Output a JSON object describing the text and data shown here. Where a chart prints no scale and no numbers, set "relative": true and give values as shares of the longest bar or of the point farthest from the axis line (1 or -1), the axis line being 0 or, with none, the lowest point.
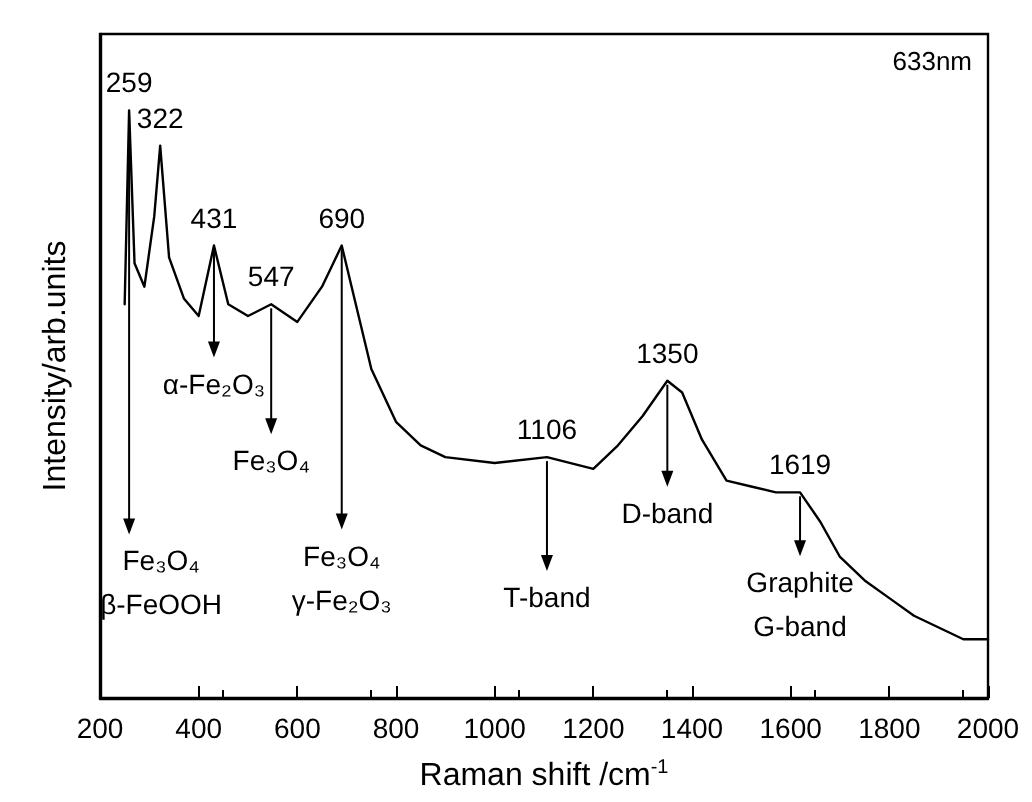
{
  "chart_data": {
    "type": "line",
    "relative": true,
    "xlabel": "Raman shift /cm$^{-1}$",
    "ylabel": "Intensity/arb.units",
    "x": [
      250,
      259,
      270,
      290,
      310,
      322,
      340,
      370,
      400,
      431,
      460,
      500,
      547,
      600,
      650,
      690,
      710,
      750,
      800,
      850,
      900,
      1000,
      1106,
      1200,
      1250,
      1300,
      1350,
      1380,
      1420,
      1470,
      1520,
      1570,
      1619,
      1660,
      1700,
      1750,
      1800,
      1850,
      1900,
      1950,
      2000
    ],
    "series": [
      {
        "color": "#000000",
        "values": [
          0.67,
          1.0,
          0.74,
          0.7,
          0.82,
          0.94,
          0.75,
          0.68,
          0.65,
          0.77,
          0.67,
          0.65,
          0.67,
          0.64,
          0.7,
          0.77,
          0.7,
          0.56,
          0.47,
          0.43,
          0.41,
          0.4,
          0.41,
          0.39,
          0.43,
          0.48,
          0.54,
          0.52,
          0.44,
          0.37,
          0.36,
          0.35,
          0.35,
          0.3,
          0.24,
          0.2,
          0.17,
          0.14,
          0.12,
          0.1,
          0.1
        ]
      }
    ],
    "xlim": [
      200,
      2000
    ],
    "xticks": [
      200,
      400,
      600,
      800,
      1000,
      1200,
      1400,
      1600,
      1800,
      2000
    ],
    "grid": false,
    "marker": "none",
    "line_style": "solid",
    "annotations": [
      "633nm",
      {
        "text": "259",
        "x": 259,
        "y": 1.0
      },
      {
        "text": "322",
        "x": 322,
        "y": 0.94
      },
      {
        "text": "431",
        "x": 431,
        "y": 0.77
      },
      {
        "text": "547",
        "x": 547,
        "y": 0.67
      },
      {
        "text": "690",
        "x": 690,
        "y": 0.77
      },
      {
        "text": "1106",
        "x": 1106,
        "y": 0.41
      },
      {
        "text": "1350",
        "x": 1350,
        "y": 0.54
      },
      {
        "text": "1619",
        "x": 1619,
        "y": 0.35
      },
      {
        "text": "Fe₃O₄\nβ-FeOOH",
        "x": 259,
        "y": 1.0
      },
      {
        "text": "α-Fe₂O₃",
        "x": 431,
        "y": 0.77
      },
      {
        "text": "Fe₃O₄",
        "x": 547,
        "y": 0.67
      },
      {
        "text": "Fe₃O₄\nγ-Fe₂O₃",
        "x": 690,
        "y": 0.77
      },
      {
        "text": "T-band",
        "x": 1106,
        "y": 0.41
      },
      {
        "text": "D-band",
        "x": 1350,
        "y": 0.54
      },
      {
        "text": "Graphite\nG-band",
        "x": 1619,
        "y": 0.35
      }
    ]
  }
}
